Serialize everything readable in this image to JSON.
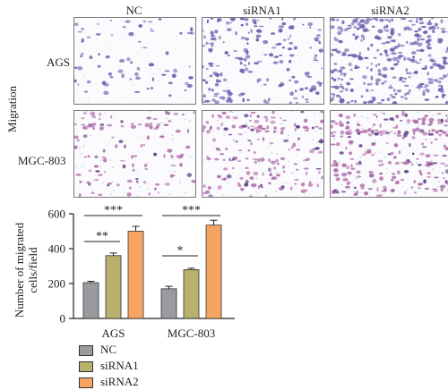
{
  "figure": {
    "columns": [
      "NC",
      "siRNA1",
      "siRNA2"
    ],
    "rows": [
      "AGS",
      "MGC-803"
    ],
    "side_label": "Migration"
  },
  "colors": {
    "NC": "#9a9b9e",
    "siRNA1": "#b9b06e",
    "siRNA2": "#f5a561",
    "ags_stain": "#6a5fae",
    "mgc_stain": "#b06aa8",
    "mgc_stain_dark": "#5c3f86"
  },
  "chart_data": {
    "type": "bar",
    "categories": [
      "AGS",
      "MGC-803"
    ],
    "series": [
      {
        "name": "NC",
        "values": [
          205,
          170
        ],
        "errors": [
          8,
          14
        ]
      },
      {
        "name": "siRNA1",
        "values": [
          360,
          280
        ],
        "errors": [
          15,
          8
        ]
      },
      {
        "name": "siRNA2",
        "values": [
          500,
          535
        ],
        "errors": [
          28,
          28
        ]
      }
    ],
    "ylabel": "Number of migrated cells/field",
    "ylabel_lines": [
      "Number of migrated",
      "cells/field"
    ],
    "ylim": [
      0,
      600
    ],
    "yticks": [
      "0",
      "200",
      "400",
      "600"
    ],
    "significance": [
      {
        "category": "AGS",
        "from": "NC",
        "to": "siRNA1",
        "label": "**"
      },
      {
        "category": "AGS",
        "from": "NC",
        "to": "siRNA2",
        "label": "***"
      },
      {
        "category": "MGC-803",
        "from": "NC",
        "to": "siRNA1",
        "label": "*"
      },
      {
        "category": "MGC-803",
        "from": "NC",
        "to": "siRNA2",
        "label": "***"
      }
    ],
    "legend": [
      "NC",
      "siRNA1",
      "siRNA2"
    ],
    "legend_position": "bottom-left"
  }
}
